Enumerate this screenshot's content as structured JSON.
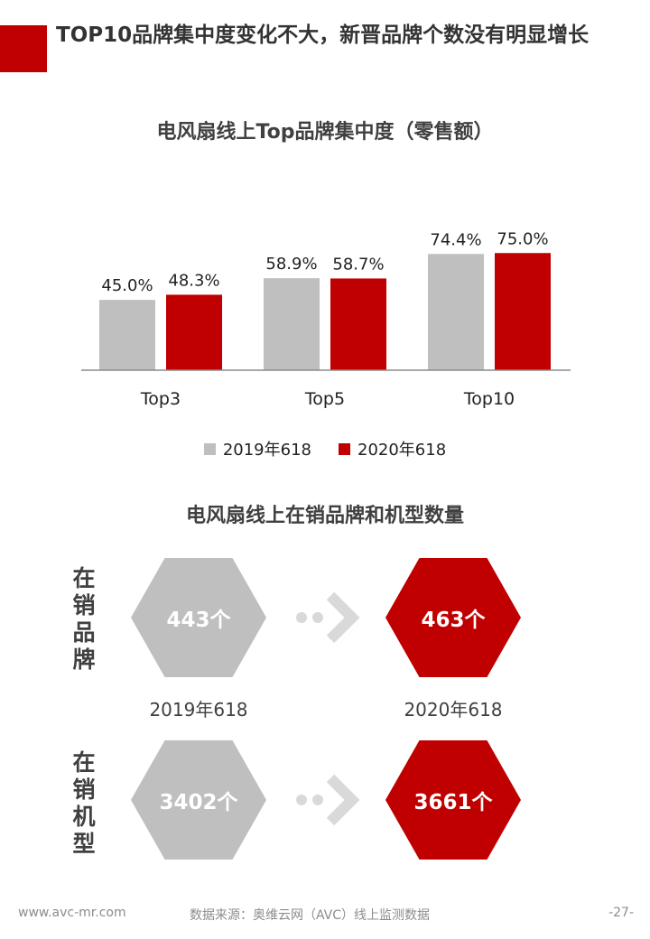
{
  "header": {
    "title": "TOP10品牌集中度变化不大，新晋品牌个数没有明显增长"
  },
  "chart_data": {
    "type": "bar",
    "title": "电风扇线上Top品牌集中度（零售额）",
    "categories": [
      "Top3",
      "Top5",
      "Top10"
    ],
    "series": [
      {
        "name": "2019年618",
        "values": [
          45.0,
          58.9,
          74.4
        ],
        "labels": [
          "45.0%",
          "58.9%",
          "74.4%"
        ],
        "color": "#bfbfbf"
      },
      {
        "name": "2020年618",
        "values": [
          48.3,
          58.7,
          75.0
        ],
        "labels": [
          "48.3%",
          "58.7%",
          "75.0%"
        ],
        "color": "#c00000"
      }
    ],
    "unit": "%",
    "ylim": [
      0,
      100
    ],
    "grid": false,
    "legend": "bottom"
  },
  "counts": {
    "title": "电风扇线上在销品牌和机型数量",
    "brands_label": "在销品牌",
    "models_label": "在销机型",
    "year_2019": "2019年618",
    "year_2020": "2020年618",
    "brands_2019": "443个",
    "brands_2020": "463个",
    "models_2019": "3402个",
    "models_2020": "3661个"
  },
  "footer": {
    "website": "www.avc-mr.com",
    "source": "数据来源：奥维云网（AVC）线上监测数据",
    "page": "-27-"
  }
}
